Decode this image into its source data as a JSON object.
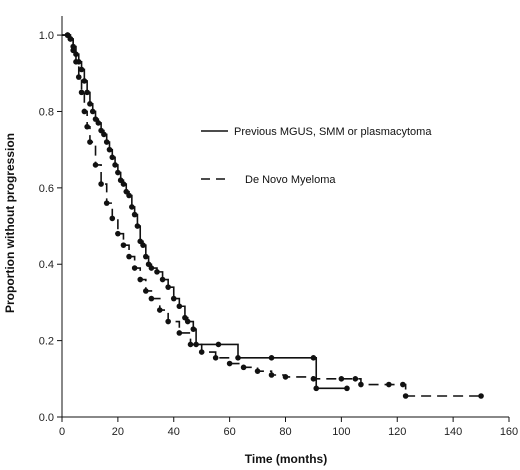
{
  "chart_data": {
    "type": "line",
    "title": "",
    "xlabel": "Time (months)",
    "ylabel": "Proportion without progression",
    "xlim": [
      0,
      160
    ],
    "ylim": [
      0,
      1.05
    ],
    "x_ticks": [
      "0",
      "20",
      "40",
      "60",
      "80",
      "100",
      "120",
      "140",
      "160"
    ],
    "y_ticks": [
      "0.0",
      "0.2",
      "0.4",
      "0.6",
      "0.8",
      "1.0"
    ],
    "grid": false,
    "legend_position": "center-right",
    "series": [
      {
        "name": "Previous MGUS, SMM or plasmacytoma",
        "style": "solid",
        "color": "#111111",
        "points": [
          [
            0,
            1.0
          ],
          [
            2,
            1.0
          ],
          [
            3,
            0.99
          ],
          [
            4,
            0.97
          ],
          [
            5,
            0.95
          ],
          [
            6,
            0.93
          ],
          [
            7,
            0.91
          ],
          [
            8,
            0.88
          ],
          [
            9,
            0.85
          ],
          [
            10,
            0.82
          ],
          [
            11,
            0.8
          ],
          [
            12,
            0.78
          ],
          [
            13,
            0.77
          ],
          [
            14,
            0.75
          ],
          [
            15,
            0.74
          ],
          [
            16,
            0.72
          ],
          [
            17,
            0.7
          ],
          [
            18,
            0.68
          ],
          [
            19,
            0.66
          ],
          [
            20,
            0.64
          ],
          [
            21,
            0.62
          ],
          [
            22,
            0.61
          ],
          [
            23,
            0.59
          ],
          [
            24,
            0.58
          ],
          [
            25,
            0.55
          ],
          [
            26,
            0.53
          ],
          [
            27,
            0.5
          ],
          [
            28,
            0.46
          ],
          [
            29,
            0.45
          ],
          [
            30,
            0.42
          ],
          [
            31,
            0.4
          ],
          [
            32,
            0.39
          ],
          [
            34,
            0.38
          ],
          [
            36,
            0.36
          ],
          [
            38,
            0.34
          ],
          [
            40,
            0.31
          ],
          [
            42,
            0.29
          ],
          [
            44,
            0.26
          ],
          [
            45,
            0.25
          ],
          [
            47,
            0.23
          ],
          [
            48,
            0.19
          ],
          [
            56,
            0.19
          ],
          [
            63,
            0.155
          ],
          [
            75,
            0.155
          ],
          [
            90,
            0.155
          ],
          [
            91,
            0.075
          ],
          [
            102,
            0.075
          ]
        ]
      },
      {
        "name": "De Novo Myeloma",
        "style": "dashed",
        "color": "#111111",
        "points": [
          [
            0,
            1.0
          ],
          [
            2,
            1.0
          ],
          [
            3,
            0.99
          ],
          [
            4,
            0.96
          ],
          [
            5,
            0.93
          ],
          [
            6,
            0.89
          ],
          [
            7,
            0.85
          ],
          [
            8,
            0.8
          ],
          [
            9,
            0.76
          ],
          [
            10,
            0.72
          ],
          [
            12,
            0.66
          ],
          [
            14,
            0.61
          ],
          [
            16,
            0.56
          ],
          [
            18,
            0.52
          ],
          [
            20,
            0.48
          ],
          [
            22,
            0.45
          ],
          [
            24,
            0.42
          ],
          [
            26,
            0.39
          ],
          [
            28,
            0.36
          ],
          [
            30,
            0.33
          ],
          [
            32,
            0.31
          ],
          [
            35,
            0.28
          ],
          [
            38,
            0.25
          ],
          [
            42,
            0.22
          ],
          [
            46,
            0.19
          ],
          [
            50,
            0.17
          ],
          [
            55,
            0.155
          ],
          [
            60,
            0.14
          ],
          [
            65,
            0.13
          ],
          [
            70,
            0.12
          ],
          [
            75,
            0.11
          ],
          [
            80,
            0.105
          ],
          [
            90,
            0.1
          ],
          [
            100,
            0.1
          ],
          [
            105,
            0.1
          ],
          [
            107,
            0.085
          ],
          [
            117,
            0.085
          ],
          [
            122,
            0.085
          ],
          [
            123,
            0.055
          ],
          [
            150,
            0.055
          ]
        ]
      }
    ]
  }
}
